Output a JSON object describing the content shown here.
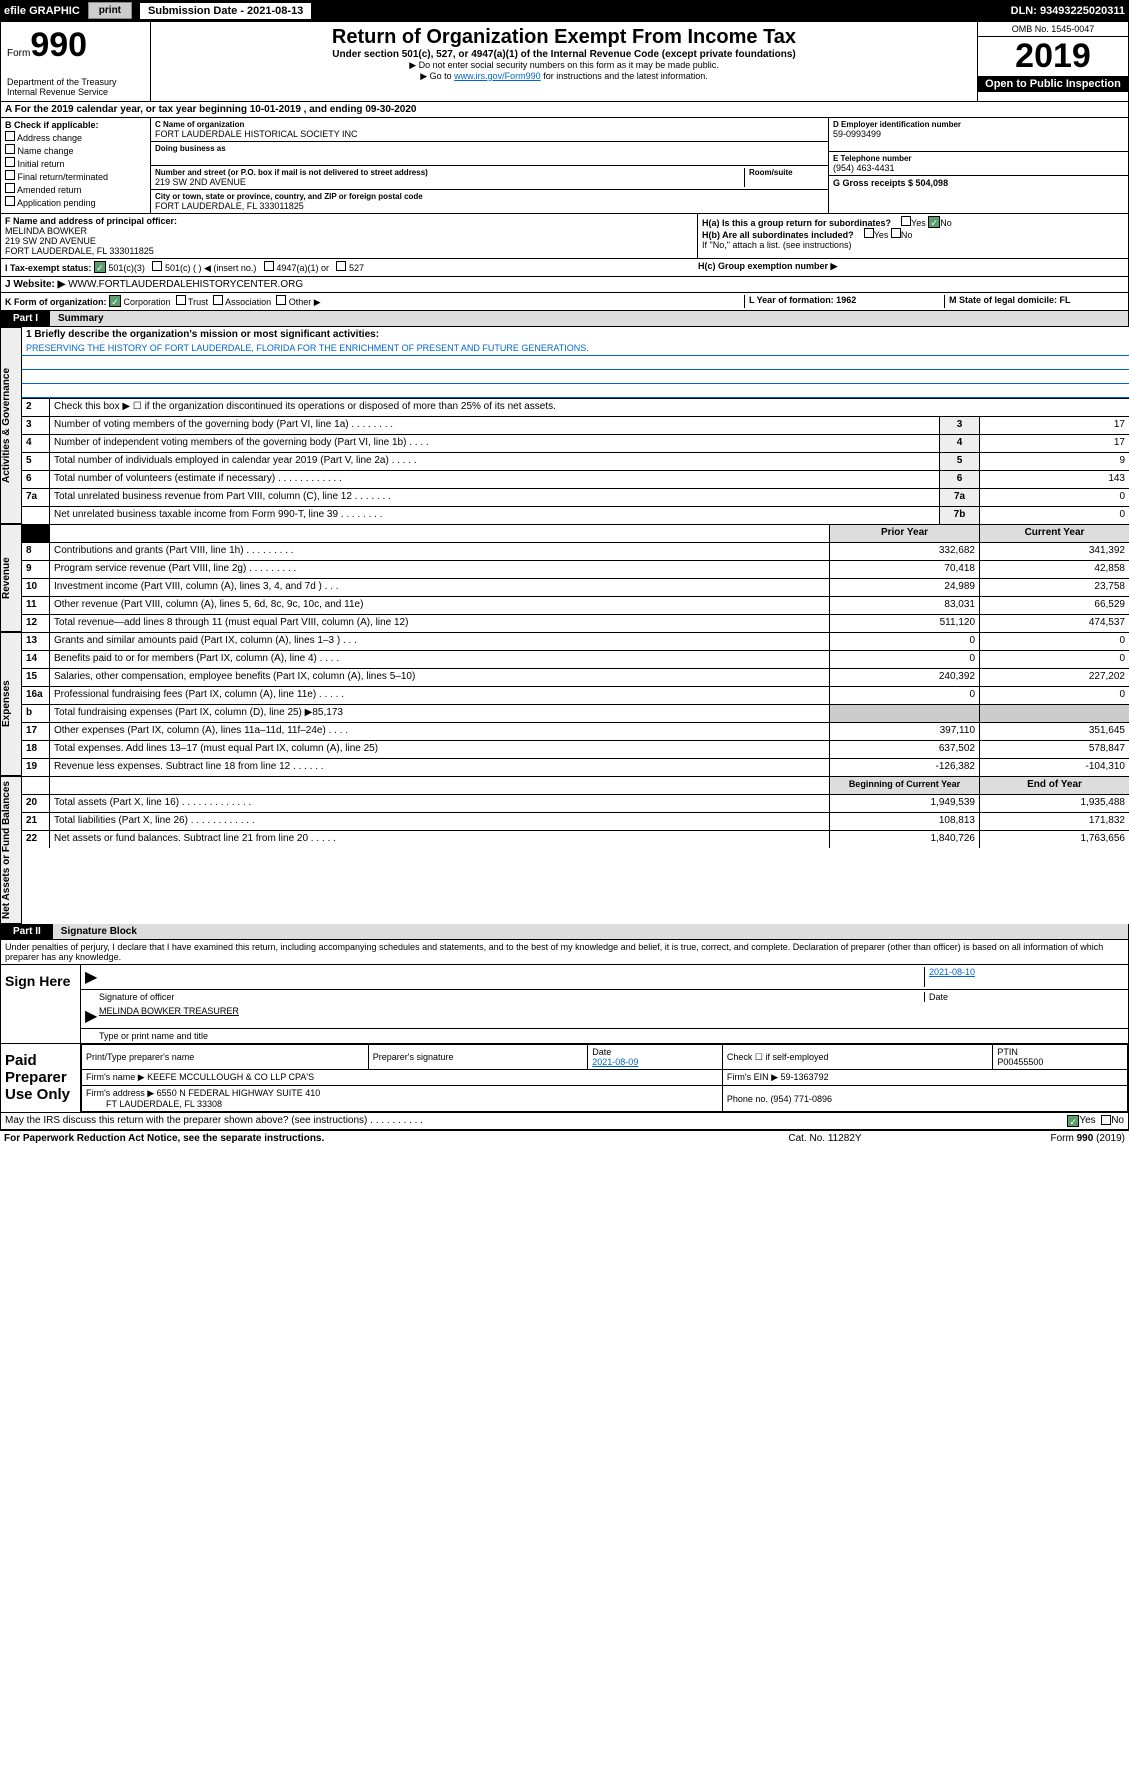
{
  "topbar": {
    "efile": "efile GRAPHIC",
    "print": "print",
    "subdate_lbl": "Submission Date - 2021-08-13",
    "dln": "DLN: 93493225020311"
  },
  "header": {
    "form_word": "Form",
    "form_no": "990",
    "dept": "Department of the Treasury\nInternal Revenue Service",
    "title": "Return of Organization Exempt From Income Tax",
    "subtitle": "Under section 501(c), 527, or 4947(a)(1) of the Internal Revenue Code (except private foundations)",
    "note1": "▶ Do not enter social security numbers on this form as it may be made public.",
    "note2_pre": "▶ Go to ",
    "note2_link": "www.irs.gov/Form990",
    "note2_post": " for instructions and the latest information.",
    "omb": "OMB No. 1545-0047",
    "year": "2019",
    "open": "Open to Public Inspection"
  },
  "rowA": "A For the 2019 calendar year, or tax year beginning 10-01-2019   , and ending 09-30-2020",
  "colB": {
    "lbl": "B Check if applicable:",
    "opts": [
      "Address change",
      "Name change",
      "Initial return",
      "Final return/terminated",
      "Amended return",
      "Application pending"
    ]
  },
  "colC": {
    "name_lbl": "C Name of organization",
    "name": "FORT LAUDERDALE HISTORICAL SOCIETY INC",
    "dba_lbl": "Doing business as",
    "addr_lbl": "Number and street (or P.O. box if mail is not delivered to street address)",
    "room": "Room/suite",
    "addr": "219 SW 2ND AVENUE",
    "city_lbl": "City or town, state or province, country, and ZIP or foreign postal code",
    "city": "FORT LAUDERDALE, FL  333011825"
  },
  "colD": {
    "lbl": "D Employer identification number",
    "val": "59-0993499"
  },
  "colE": {
    "lbl": "E Telephone number",
    "val": "(954) 463-4431"
  },
  "colG": {
    "lbl": "G Gross receipts $ 504,098"
  },
  "rowF": {
    "lbl": "F Name and address of principal officer:",
    "name": "MELINDA BOWKER",
    "addr1": "219 SW 2ND AVENUE",
    "addr2": "FORT LAUDERDALE, FL  333011825"
  },
  "rowH": {
    "ha": "H(a)  Is this a group return for subordinates?",
    "hb": "H(b)  Are all subordinates included?",
    "hb_note": "If \"No,\" attach a list. (see instructions)",
    "hc": "H(c)  Group exemption number ▶",
    "yes": "Yes",
    "no": "No"
  },
  "rowI": {
    "lbl": "I   Tax-exempt status:",
    "o1": "501(c)(3)",
    "o2": "501(c) (   ) ◀ (insert no.)",
    "o3": "4947(a)(1) or",
    "o4": "527"
  },
  "rowJ": {
    "lbl": "J   Website: ▶",
    "val": "WWW.FORTLAUDERDALEHISTORYCENTER.ORG"
  },
  "rowK": {
    "lbl": "K Form of organization:",
    "o1": "Corporation",
    "o2": "Trust",
    "o3": "Association",
    "o4": "Other ▶",
    "L": "L Year of formation: 1962",
    "M": "M State of legal domicile: FL"
  },
  "part1": {
    "pill": "Part I",
    "title": "Summary"
  },
  "mission_lbl": "1  Briefly describe the organization's mission or most significant activities:",
  "mission": "PRESERVING THE HISTORY OF FORT LAUDERDALE, FLORIDA FOR THE ENRICHMENT OF PRESENT AND FUTURE GENERATIONS.",
  "line2": "Check this box ▶ ☐  if the organization discontinued its operations or disposed of more than 25% of its net assets.",
  "vtabs": {
    "gov": "Activities & Governance",
    "rev": "Revenue",
    "exp": "Expenses",
    "net": "Net Assets or Fund Balances"
  },
  "simple_lines": [
    {
      "n": "3",
      "t": "Number of voting members of the governing body (Part VI, line 1a)  .   .   .   .   .   .   .   .",
      "c": "3",
      "v": "17"
    },
    {
      "n": "4",
      "t": "Number of independent voting members of the governing body (Part VI, line 1b)  .   .   .   .",
      "c": "4",
      "v": "17"
    },
    {
      "n": "5",
      "t": "Total number of individuals employed in calendar year 2019 (Part V, line 2a)  .   .   .   .   .",
      "c": "5",
      "v": "9"
    },
    {
      "n": "6",
      "t": "Total number of volunteers (estimate if necessary)  .   .   .   .   .   .   .   .   .   .   .   .",
      "c": "6",
      "v": "143"
    },
    {
      "n": "7a",
      "t": "Total unrelated business revenue from Part VIII, column (C), line 12  .   .   .   .   .   .   .",
      "c": "7a",
      "v": "0"
    },
    {
      "n": "",
      "t": "Net unrelated business taxable income from Form 990-T, line 39  .   .   .   .   .   .   .   .",
      "c": "7b",
      "v": "0"
    }
  ],
  "twocol_hdr": {
    "a": "Prior Year",
    "b": "Current Year"
  },
  "rev_lines": [
    {
      "n": "8",
      "t": "Contributions and grants (Part VIII, line 1h)  .   .   .   .   .   .   .   .   .",
      "a": "332,682",
      "b": "341,392"
    },
    {
      "n": "9",
      "t": "Program service revenue (Part VIII, line 2g)  .   .   .   .   .   .   .   .   .",
      "a": "70,418",
      "b": "42,858"
    },
    {
      "n": "10",
      "t": "Investment income (Part VIII, column (A), lines 3, 4, and 7d )  .   .   .",
      "a": "24,989",
      "b": "23,758"
    },
    {
      "n": "11",
      "t": "Other revenue (Part VIII, column (A), lines 5, 6d, 8c, 9c, 10c, and 11e)",
      "a": "83,031",
      "b": "66,529"
    },
    {
      "n": "12",
      "t": "Total revenue—add lines 8 through 11 (must equal Part VIII, column (A), line 12)",
      "a": "511,120",
      "b": "474,537"
    }
  ],
  "exp_lines": [
    {
      "n": "13",
      "t": "Grants and similar amounts paid (Part IX, column (A), lines 1–3 )  .   .   .",
      "a": "0",
      "b": "0"
    },
    {
      "n": "14",
      "t": "Benefits paid to or for members (Part IX, column (A), line 4)  .   .   .   .",
      "a": "0",
      "b": "0"
    },
    {
      "n": "15",
      "t": "Salaries, other compensation, employee benefits (Part IX, column (A), lines 5–10)",
      "a": "240,392",
      "b": "227,202"
    },
    {
      "n": "16a",
      "t": "Professional fundraising fees (Part IX, column (A), line 11e)  .   .   .   .   .",
      "a": "0",
      "b": "0"
    }
  ],
  "line16b": "Total fundraising expenses (Part IX, column (D), line 25) ▶85,173",
  "exp_lines2": [
    {
      "n": "17",
      "t": "Other expenses (Part IX, column (A), lines 11a–11d, 11f–24e)  .   .   .   .",
      "a": "397,110",
      "b": "351,645"
    },
    {
      "n": "18",
      "t": "Total expenses. Add lines 13–17 (must equal Part IX, column (A), line 25)",
      "a": "637,502",
      "b": "578,847"
    },
    {
      "n": "19",
      "t": "Revenue less expenses. Subtract line 18 from line 12  .   .   .   .   .   .",
      "a": "-126,382",
      "b": "-104,310"
    }
  ],
  "net_hdr": {
    "a": "Beginning of Current Year",
    "b": "End of Year"
  },
  "net_lines": [
    {
      "n": "20",
      "t": "Total assets (Part X, line 16)  .   .   .   .   .   .   .   .   .   .   .   .   .",
      "a": "1,949,539",
      "b": "1,935,488"
    },
    {
      "n": "21",
      "t": "Total liabilities (Part X, line 26)  .   .   .   .   .   .   .   .   .   .   .   .",
      "a": "108,813",
      "b": "171,832"
    },
    {
      "n": "22",
      "t": "Net assets or fund balances. Subtract line 21 from line 20  .   .   .   .   .",
      "a": "1,840,726",
      "b": "1,763,656"
    }
  ],
  "part2": {
    "pill": "Part II",
    "title": "Signature Block"
  },
  "perjury": "Under penalties of perjury, I declare that I have examined this return, including accompanying schedules and statements, and to the best of my knowledge and belief, it is true, correct, and complete. Declaration of preparer (other than officer) is based on all information of which preparer has any knowledge.",
  "sign": {
    "here": "Sign Here",
    "sig_lbl": "Signature of officer",
    "date": "2021-08-10",
    "date_lbl": "Date",
    "name": "MELINDA BOWKER  TREASURER",
    "name_lbl": "Type or print name and title"
  },
  "paid": {
    "title": "Paid Preparer Use Only",
    "h1": "Print/Type preparer's name",
    "h2": "Preparer's signature",
    "h3": "Date",
    "h4": "Check ☐ if self-employed",
    "h5": "PTIN",
    "date": "2021-08-09",
    "ptin": "P00455500",
    "firm_lbl": "Firm's name   ▶",
    "firm": "KEEFE MCCULLOUGH & CO LLP CPA'S",
    "ein_lbl": "Firm's EIN ▶",
    "ein": "59-1363792",
    "addr_lbl": "Firm's address ▶",
    "addr": "6550 N FEDERAL HIGHWAY SUITE 410",
    "addr2": "FT LAUDERDALE, FL  33308",
    "phone_lbl": "Phone no.",
    "phone": "(954) 771-0896"
  },
  "discuss": "May the IRS discuss this return with the preparer shown above? (see instructions)   .   .   .   .   .   .   .   .   .   .",
  "footer": {
    "a": "For Paperwork Reduction Act Notice, see the separate instructions.",
    "b": "Cat. No. 11282Y",
    "c": "Form 990 (2019)"
  }
}
